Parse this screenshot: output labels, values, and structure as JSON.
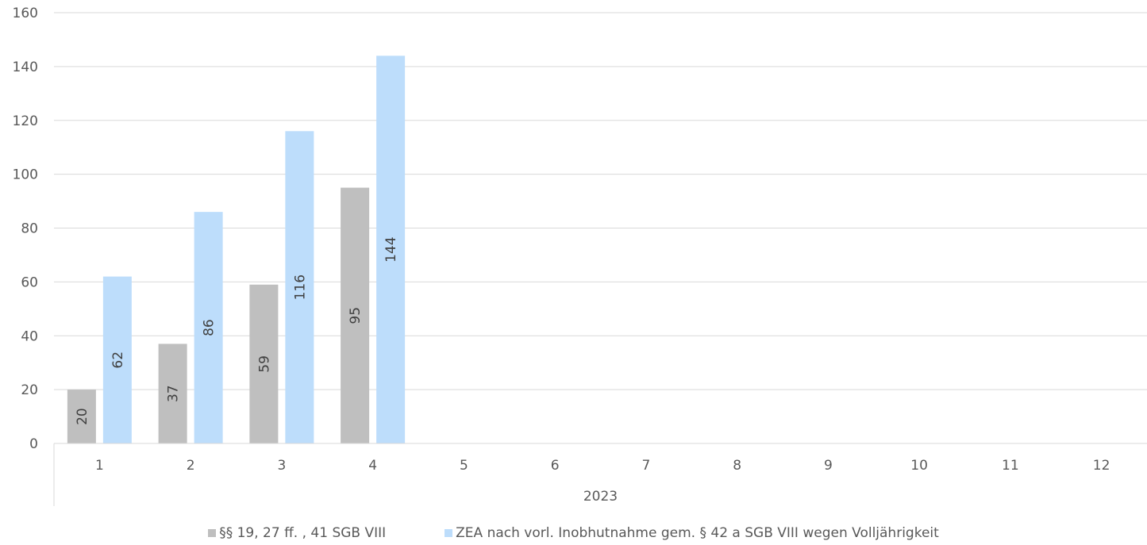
{
  "chart_data": {
    "type": "bar",
    "categories": [
      "1",
      "2",
      "3",
      "4",
      "5",
      "6",
      "7",
      "8",
      "9",
      "10",
      "11",
      "12"
    ],
    "group_label": "2023",
    "series": [
      {
        "name": "§§ 19, 27 ff. , 41 SGB VIII",
        "color": "#bfbfbf",
        "values": [
          20,
          37,
          59,
          95,
          null,
          null,
          null,
          null,
          null,
          null,
          null,
          null
        ]
      },
      {
        "name": "ZEA nach vorl. Inobhutnahme gem. § 42 a SGB VIII wegen Volljährigkeit",
        "color": "#bdddfb",
        "values": [
          62,
          86,
          116,
          144,
          null,
          null,
          null,
          null,
          null,
          null,
          null,
          null
        ]
      }
    ],
    "ylim": [
      0,
      160
    ],
    "yticks": [
      0,
      20,
      40,
      60,
      80,
      100,
      120,
      140,
      160
    ],
    "grid": true,
    "legend": "bottom"
  }
}
